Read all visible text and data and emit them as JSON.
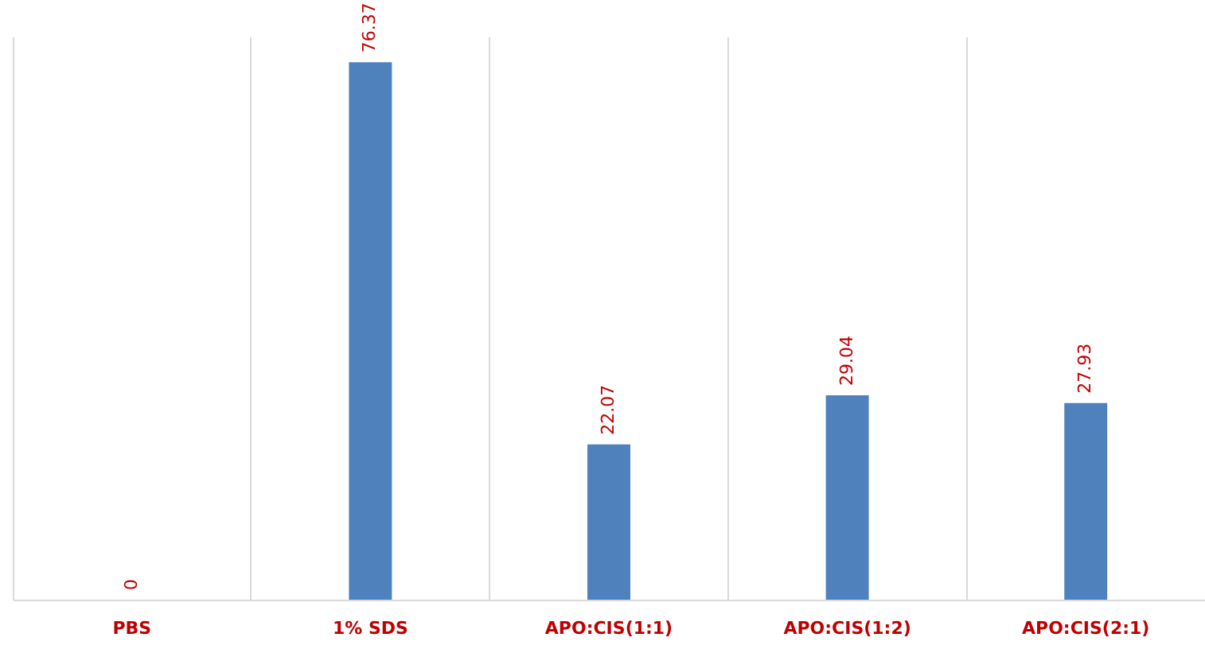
{
  "chart_data": {
    "type": "bar",
    "categories": [
      "PBS",
      "1% SDS",
      "APO:CIS(1:1)",
      "APO:CIS(1:2)",
      "APO:CIS(2:1)"
    ],
    "values": [
      0,
      76.37,
      22.07,
      29.04,
      27.93
    ],
    "color": "#4f81bd",
    "data_labels": true,
    "grid": "x"
  }
}
